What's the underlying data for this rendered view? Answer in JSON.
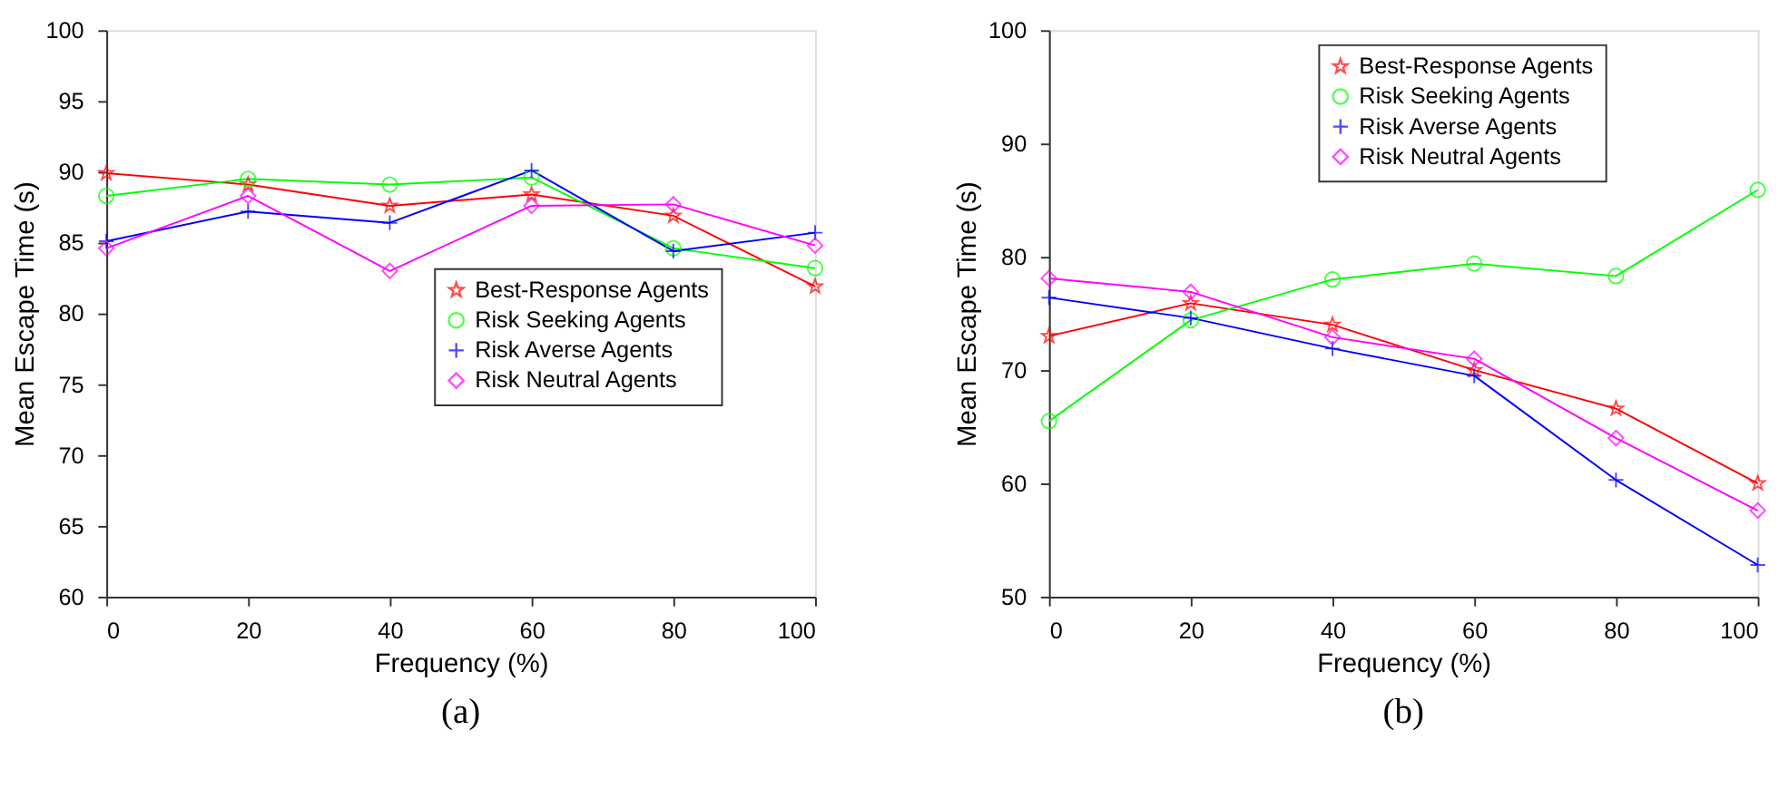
{
  "chart_data": [
    {
      "type": "line",
      "xlabel": "Frequency (%)",
      "ylabel": "Mean Escape Time (s)",
      "x": [
        0,
        20,
        40,
        60,
        80,
        100
      ],
      "xlim": [
        0,
        100
      ],
      "xticks": [
        0,
        20,
        40,
        60,
        80,
        100
      ],
      "ylim": [
        60,
        100
      ],
      "yticks": [
        60,
        65,
        70,
        75,
        80,
        85,
        90,
        95,
        100
      ],
      "grid": false,
      "legend": "right",
      "annotations": [
        "(a)"
      ],
      "series": [
        {
          "name": "Best-Response Agents",
          "color": "#ff0000",
          "marker": "star",
          "values": [
            89.9,
            89.1,
            87.6,
            88.4,
            86.9,
            81.9
          ]
        },
        {
          "name": "Risk Seeking Agents",
          "color": "#00ff00",
          "marker": "circle",
          "values": [
            88.3,
            89.5,
            89.1,
            89.6,
            84.6,
            83.2
          ]
        },
        {
          "name": "Risk Averse Agents",
          "color": "#0000ff",
          "marker": "cross",
          "values": [
            85.1,
            87.2,
            86.4,
            90.1,
            84.4,
            85.7
          ]
        },
        {
          "name": "Risk Neutral Agents",
          "color": "#ff00ff",
          "marker": "diamond",
          "values": [
            84.6,
            88.3,
            83.0,
            87.6,
            87.7,
            84.8
          ]
        }
      ]
    },
    {
      "type": "line",
      "xlabel": "Frequency (%)",
      "ylabel": "Mean Escape Time (s)",
      "x": [
        0,
        20,
        40,
        60,
        80,
        100
      ],
      "xlim": [
        0,
        100
      ],
      "xticks": [
        0,
        20,
        40,
        60,
        80,
        100
      ],
      "ylim": [
        50,
        100
      ],
      "yticks": [
        50,
        60,
        70,
        80,
        90,
        100
      ],
      "grid": false,
      "legend": "top",
      "annotations": [
        "(b)"
      ],
      "series": [
        {
          "name": "Best-Response Agents",
          "color": "#ff0000",
          "marker": "star",
          "values": [
            73.0,
            75.9,
            74.0,
            70.0,
            66.6,
            60.0
          ]
        },
        {
          "name": "Risk Seeking Agents",
          "color": "#00ff00",
          "marker": "circle",
          "values": [
            65.5,
            74.4,
            78.0,
            79.4,
            78.3,
            85.9
          ]
        },
        {
          "name": "Risk Averse Agents",
          "color": "#0000ff",
          "marker": "cross",
          "values": [
            76.4,
            74.6,
            71.9,
            69.5,
            60.3,
            52.8
          ]
        },
        {
          "name": "Risk Neutral Agents",
          "color": "#ff00ff",
          "marker": "diamond",
          "values": [
            78.1,
            76.9,
            72.9,
            71.0,
            64.0,
            57.6
          ]
        }
      ]
    }
  ]
}
